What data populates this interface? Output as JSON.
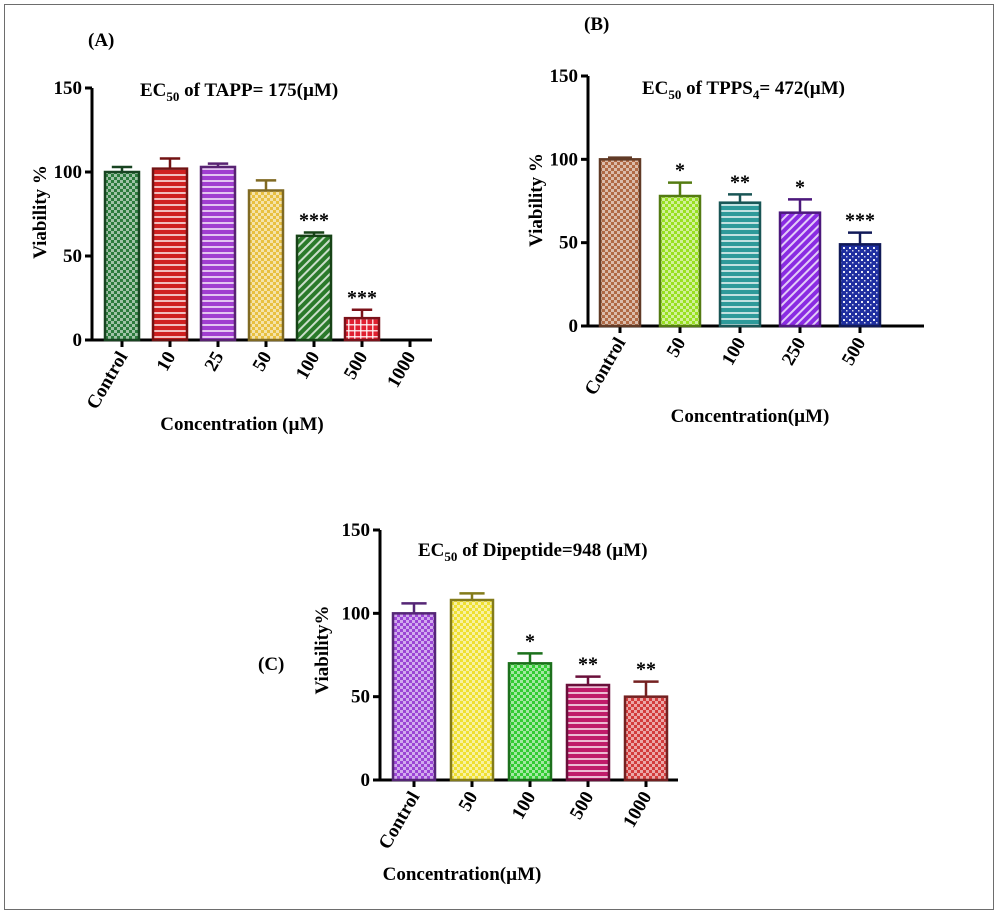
{
  "chart_data": [
    {
      "panel": "(A)",
      "type": "bar",
      "title": "EC50 of TAPP= 175(µM)",
      "title_parts": {
        "pre": "EC",
        "sub": "50",
        "post": " of TAPP= 175(µM)"
      },
      "xlabel": "Concentration (µM)",
      "ylabel": "Viability %",
      "ylim": [
        0,
        150
      ],
      "yticks": [
        0,
        50,
        100,
        150
      ],
      "categories": [
        "Control",
        "10",
        "25",
        "50",
        "100",
        "500",
        "1000"
      ],
      "values": [
        100,
        102,
        103,
        89,
        62,
        13,
        null
      ],
      "errors": [
        3,
        6,
        2,
        6,
        2,
        5,
        null
      ],
      "significance": [
        "",
        "",
        "",
        "",
        "***",
        "***",
        ""
      ],
      "colors": [
        "#2c7b3c",
        "#cf2020",
        "#a03ed0",
        "#e8c040",
        "#2a7a2a",
        "#e02030",
        null
      ],
      "patterns": [
        "check",
        "hlines",
        "hlines-white",
        "check",
        "diag",
        "grid",
        "none"
      ]
    },
    {
      "panel": "(B)",
      "type": "bar",
      "title": "EC50 of TPPS4= 472(µM)",
      "title_parts": {
        "pre": "EC",
        "sub": "50",
        "post": " of TPPS",
        "sub2": "4",
        "post2": "= 472(µM)"
      },
      "xlabel": "Concentration(µM)",
      "ylabel": "Viability %",
      "ylim": [
        0,
        150
      ],
      "yticks": [
        0,
        50,
        100,
        150
      ],
      "categories": [
        "Control",
        "50",
        "100",
        "250",
        "500"
      ],
      "values": [
        100,
        78,
        74,
        68,
        49
      ],
      "errors": [
        1,
        8,
        5,
        8,
        7
      ],
      "significance": [
        "",
        "*",
        "**",
        "*",
        "***"
      ],
      "colors": [
        "#b06a45",
        "#98e020",
        "#2e9a9a",
        "#8a2be2",
        "#1f2fa0"
      ],
      "patterns": [
        "check",
        "check",
        "hlines",
        "diag",
        "brick"
      ]
    },
    {
      "panel": "(C)",
      "type": "bar",
      "title": "EC50 of Dipeptide=948 (µM)",
      "title_parts": {
        "pre": "EC",
        "sub": "50",
        "post": " of Dipeptide=948 (µM)"
      },
      "xlabel": "Concentration(µM)",
      "ylabel": "Viability%",
      "ylim": [
        0,
        150
      ],
      "yticks": [
        0,
        50,
        100,
        150
      ],
      "categories": [
        "Control",
        "50",
        "100",
        "500",
        "1000"
      ],
      "values": [
        100,
        108,
        70,
        57,
        50
      ],
      "errors": [
        6,
        4,
        6,
        5,
        9
      ],
      "significance": [
        "",
        "",
        "*",
        "**",
        "**"
      ],
      "colors": [
        "#9b45d6",
        "#efe030",
        "#33cc33",
        "#c01c6a",
        "#d33c3c"
      ],
      "patterns": [
        "check",
        "check",
        "check",
        "hlines",
        "check"
      ]
    }
  ]
}
